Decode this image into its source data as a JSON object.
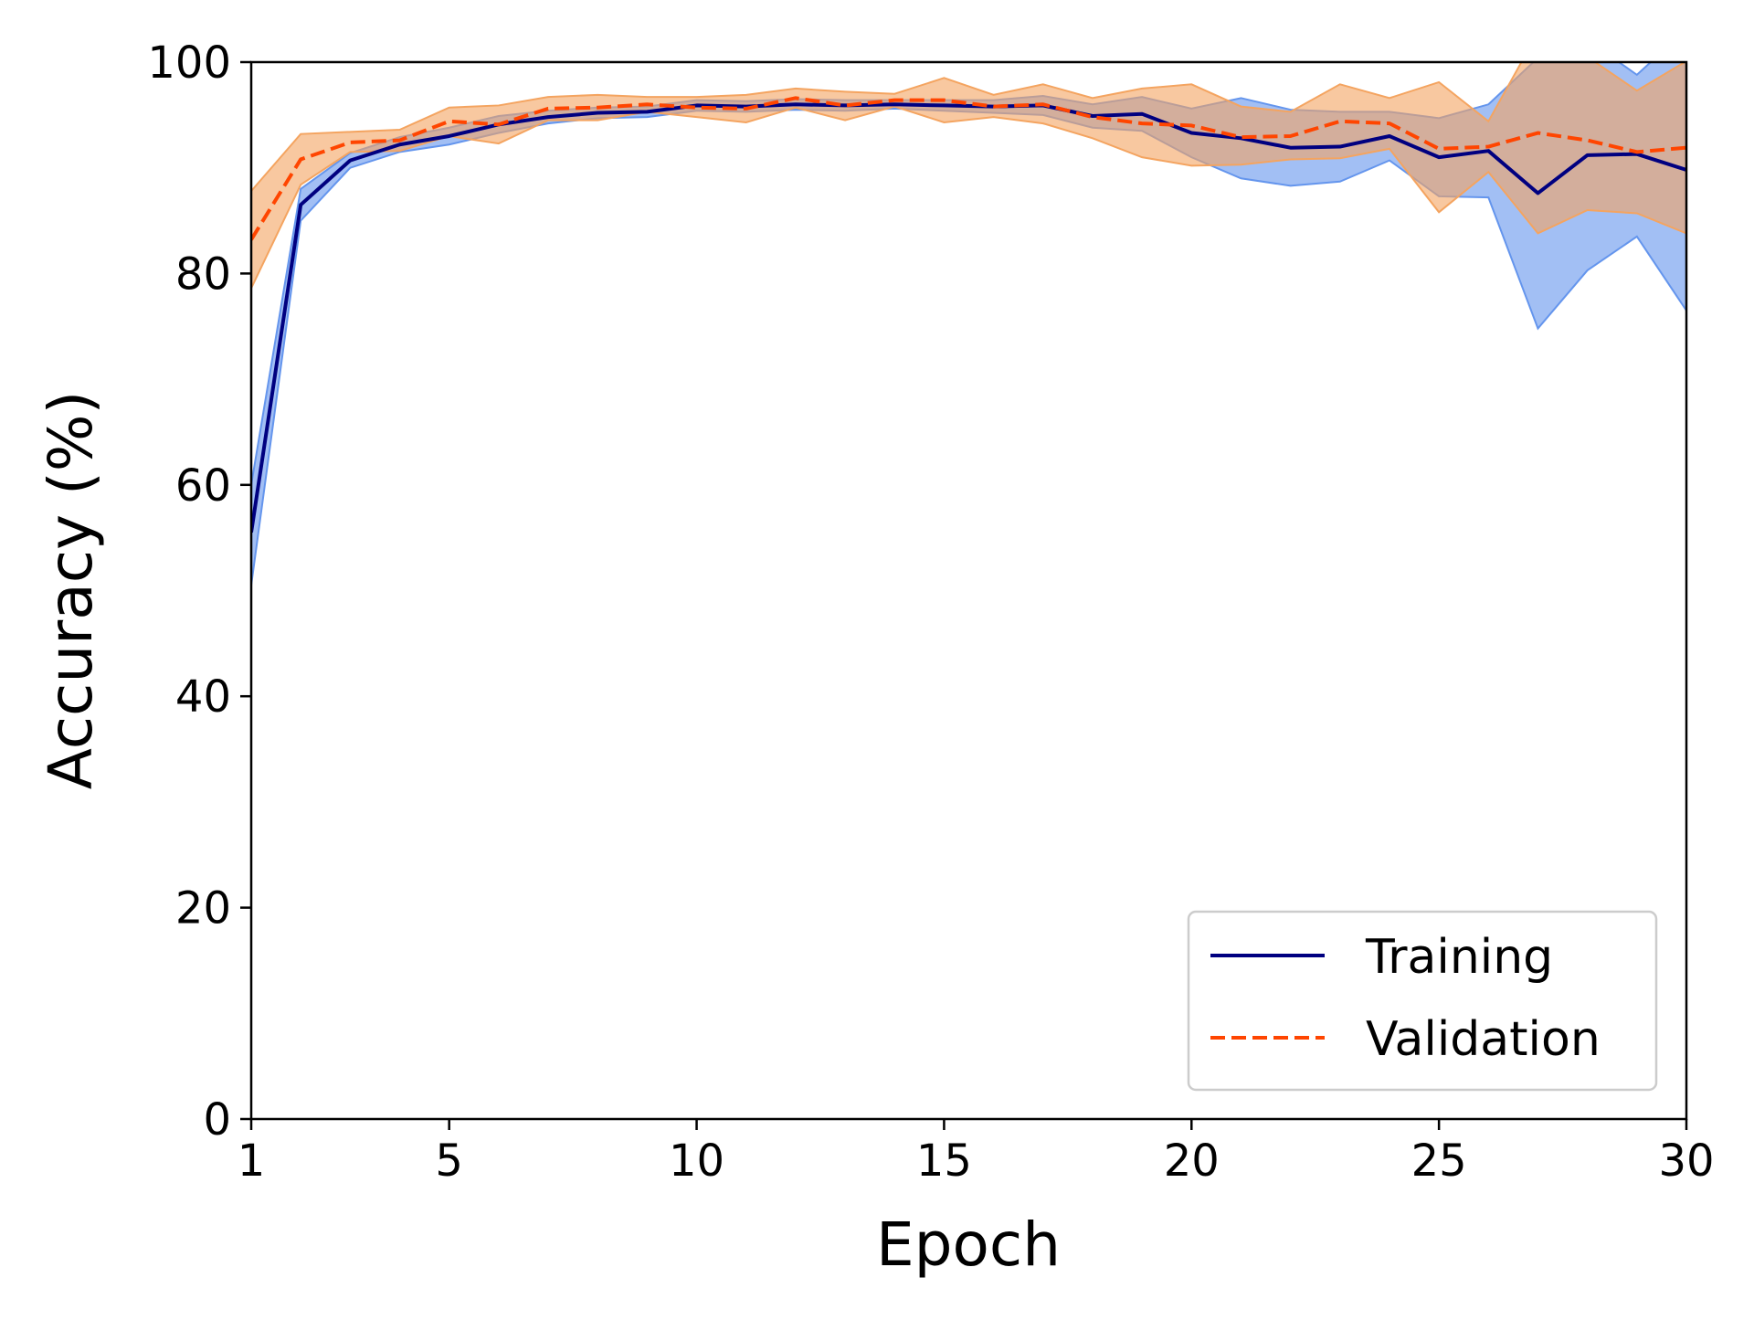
{
  "chart_data": {
    "type": "line",
    "title": "",
    "xlabel": "Epoch",
    "ylabel": "Accuracy (%)",
    "xlim": [
      1,
      30
    ],
    "ylim": [
      0,
      100
    ],
    "xticks": [
      1,
      5,
      10,
      15,
      20,
      25,
      30
    ],
    "yticks": [
      0,
      20,
      40,
      60,
      80,
      100
    ],
    "grid": false,
    "legend_position": "lower-right",
    "x": [
      1,
      2,
      3,
      4,
      5,
      6,
      7,
      8,
      9,
      10,
      11,
      12,
      13,
      14,
      15,
      16,
      17,
      18,
      19,
      20,
      21,
      22,
      23,
      24,
      25,
      26,
      27,
      28,
      29,
      30
    ],
    "series": [
      {
        "name": "Training",
        "style": "solid",
        "color": "#000080",
        "band_color": "#6495ED",
        "values": [
          55.5,
          86.5,
          90.7,
          92.2,
          93.0,
          94.1,
          94.8,
          95.2,
          95.3,
          95.9,
          95.8,
          96.0,
          95.9,
          96.0,
          95.9,
          95.8,
          95.9,
          94.9,
          95.1,
          93.3,
          92.8,
          91.9,
          92.0,
          93.0,
          91.0,
          91.6,
          87.6,
          91.2,
          91.3,
          89.8
        ],
        "lower": [
          50.5,
          85.0,
          90.0,
          91.5,
          92.2,
          93.3,
          94.2,
          94.7,
          94.8,
          95.4,
          95.3,
          95.5,
          95.4,
          95.6,
          95.4,
          95.2,
          95.0,
          93.8,
          93.5,
          91.0,
          89.0,
          88.3,
          88.7,
          90.7,
          87.3,
          87.2,
          74.8,
          80.3,
          83.5,
          76.5
        ],
        "upper": [
          60.0,
          88.0,
          91.4,
          92.9,
          93.8,
          94.9,
          95.4,
          95.7,
          95.8,
          96.4,
          96.3,
          96.5,
          96.4,
          96.4,
          96.4,
          96.4,
          96.8,
          96.0,
          96.7,
          95.6,
          96.6,
          95.5,
          95.3,
          95.3,
          94.7,
          96.0,
          100.4,
          102.1,
          98.8,
          103.1
        ]
      },
      {
        "name": "Validation",
        "style": "dashed",
        "color": "#FF4500",
        "band_color": "#F4A460",
        "values": [
          83.2,
          90.8,
          92.4,
          92.6,
          94.4,
          94.1,
          95.6,
          95.7,
          96.0,
          95.7,
          95.6,
          96.6,
          95.9,
          96.4,
          96.4,
          95.8,
          96.0,
          94.8,
          94.2,
          94.0,
          92.9,
          93.0,
          94.4,
          94.2,
          91.8,
          92.0,
          93.3,
          92.6,
          91.5,
          91.9
        ],
        "lower": [
          78.6,
          88.4,
          91.5,
          91.6,
          93.0,
          92.3,
          94.5,
          94.5,
          95.3,
          94.8,
          94.3,
          95.7,
          94.5,
          95.8,
          94.3,
          94.8,
          94.2,
          92.8,
          91.0,
          90.2,
          90.3,
          90.8,
          90.9,
          91.8,
          85.8,
          89.6,
          83.8,
          86.0,
          85.7,
          83.8
        ],
        "upper": [
          87.8,
          93.2,
          93.4,
          93.6,
          95.7,
          95.9,
          96.7,
          96.9,
          96.7,
          96.7,
          96.9,
          97.5,
          97.2,
          97.0,
          98.5,
          96.9,
          97.9,
          96.6,
          97.5,
          97.9,
          95.8,
          95.3,
          97.9,
          96.6,
          98.1,
          94.4,
          102.8,
          100.5,
          97.3,
          100.1
        ]
      }
    ]
  }
}
